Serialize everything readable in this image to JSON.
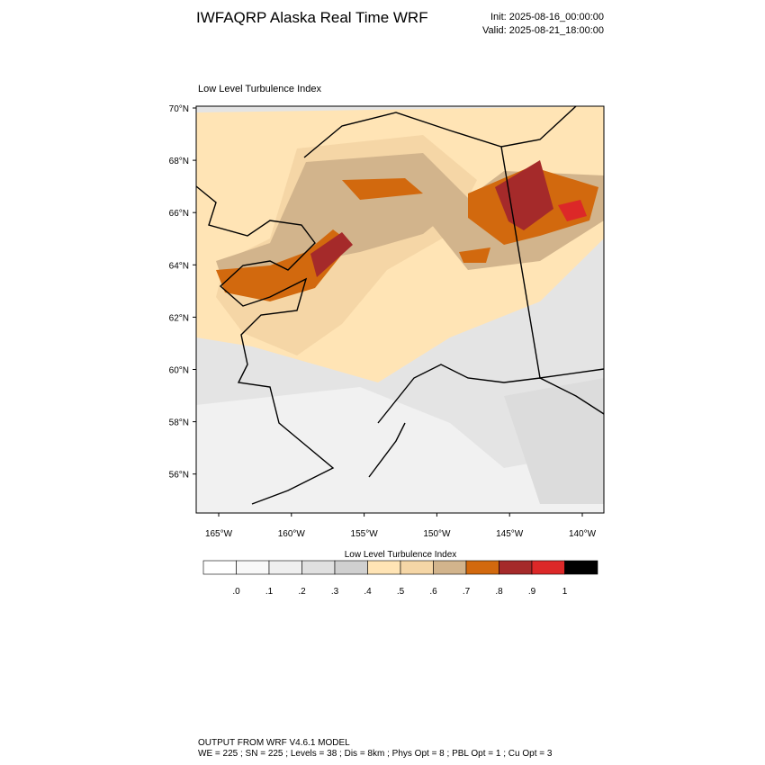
{
  "header": {
    "title": "IWFAQRP Alaska Real Time WRF",
    "init": "Init: 2025-08-16_00:00:00",
    "valid": "Valid: 2025-08-21_18:00:00"
  },
  "map": {
    "title": "Low Level Turbulence Index",
    "lat_labels": [
      "70°N",
      "68°N",
      "66°N",
      "64°N",
      "62°N",
      "60°N",
      "58°N",
      "56°N"
    ],
    "lon_labels": [
      "165°W",
      "160°W",
      "155°W",
      "150°W",
      "145°W",
      "140°W"
    ]
  },
  "colorbar": {
    "title": "Low Level Turbulence Index",
    "colors": [
      "#ffffff",
      "#f8f8f8",
      "#efefef",
      "#e0e0e0",
      "#d0d0d0",
      "#ffe4b5",
      "#f5d6a6",
      "#d2b48c",
      "#d2690e",
      "#a52a2a",
      "#dc2828",
      "#000000"
    ],
    "labels": [
      ".0",
      ".1",
      ".2",
      ".3",
      ".4",
      ".5",
      ".6",
      ".7",
      ".8",
      ".9",
      "1"
    ]
  },
  "footer": {
    "line1": "OUTPUT FROM WRF V4.6.1 MODEL",
    "line2": "WE = 225 ; SN = 225 ; Levels = 38 ; Dis = 8km ; Phys Opt = 8 ; PBL Opt = 1 ; Cu Opt = 3"
  }
}
